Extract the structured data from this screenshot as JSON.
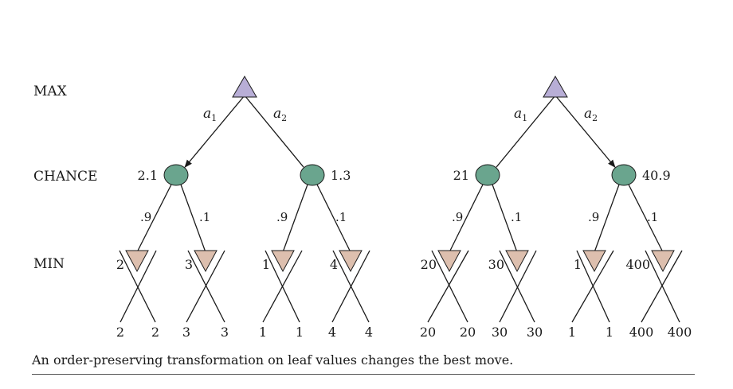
{
  "row_labels": {
    "max": "MAX",
    "chance": "CHANCE",
    "min": "MIN"
  },
  "colors": {
    "max": "#b8aed6",
    "chance": "#6aa58e",
    "min": "#ddbfae",
    "edge": "#1a1a1a"
  },
  "trees": [
    {
      "actions": [
        {
          "name": "a",
          "sub": "1"
        },
        {
          "name": "a",
          "sub": "2"
        }
      ],
      "chosen_action": 0,
      "chance": [
        {
          "value": "2.1",
          "probs": [
            ".9",
            ".1"
          ],
          "min": [
            {
              "value": "2",
              "leaves": [
                "2",
                "2"
              ]
            },
            {
              "value": "3",
              "leaves": [
                "3",
                "3"
              ]
            }
          ]
        },
        {
          "value": "1.3",
          "probs": [
            ".9",
            ".1"
          ],
          "min": [
            {
              "value": "1",
              "leaves": [
                "1",
                "1"
              ]
            },
            {
              "value": "4",
              "leaves": [
                "4",
                "4"
              ]
            }
          ]
        }
      ]
    },
    {
      "actions": [
        {
          "name": "a",
          "sub": "1"
        },
        {
          "name": "a",
          "sub": "2"
        }
      ],
      "chosen_action": 1,
      "chance": [
        {
          "value": "21",
          "probs": [
            ".9",
            ".1"
          ],
          "min": [
            {
              "value": "20",
              "leaves": [
                "20",
                "20"
              ]
            },
            {
              "value": "30",
              "leaves": [
                "30",
                "30"
              ]
            }
          ]
        },
        {
          "value": "40.9",
          "probs": [
            ".9",
            ".1"
          ],
          "min": [
            {
              "value": "1",
              "leaves": [
                "1",
                "1"
              ]
            },
            {
              "value": "400",
              "leaves": [
                "400",
                "400"
              ]
            }
          ]
        }
      ]
    }
  ],
  "caption": "An order-preserving transformation on leaf values changes the best move."
}
